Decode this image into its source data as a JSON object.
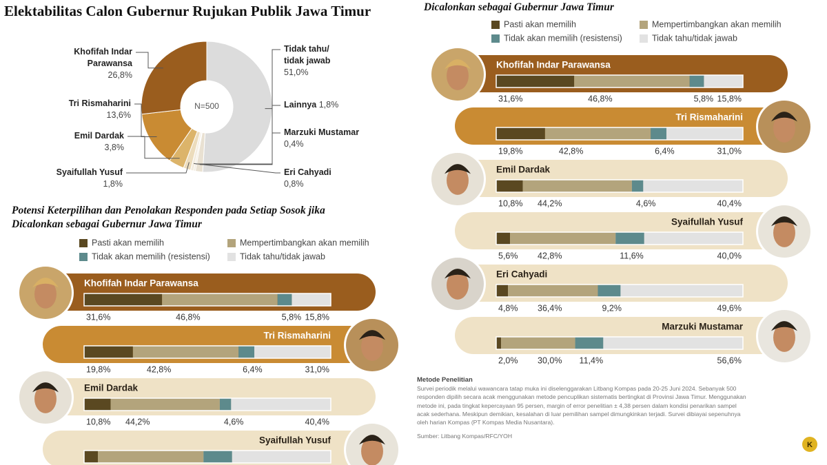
{
  "chart_data": [
    {
      "type": "pie",
      "title": "Elektabilitas Calon Gubernur Rujukan Publik Jawa Timur",
      "annotation": "N=500",
      "categories": [
        "Tidak tahu/ tidak jawab",
        "Lainnya",
        "Marzuki Mustamar",
        "Eri Cahyadi",
        "Syaifullah Yusuf",
        "Emil Dardak",
        "Tri Rismaharini",
        "Khofifah Indar Parawansa"
      ],
      "values": [
        51.0,
        1.8,
        0.4,
        0.8,
        1.8,
        3.8,
        13.6,
        26.8
      ],
      "value_labels": [
        "51,0%",
        "1,8%",
        "0,4%",
        "0,8%",
        "1,8%",
        "3,8%",
        "13,6%",
        "26,8%"
      ],
      "colors": [
        "#dcdcdc",
        "#e9e1d2",
        "#efe7d8",
        "#f3ecdf",
        "#ecdcbc",
        "#dcb46a",
        "#c98b33",
        "#9a5d1e"
      ]
    },
    {
      "type": "stacked_bar",
      "title": "Potensi Keterpilihan dan Penolakan Responden pada Setiap Sosok jika Dicalonkan sebagai Gubernur Jawa Timur",
      "categories": [
        "Khofifah Indar Parawansa",
        "Tri Rismaharini",
        "Emil Dardak",
        "Syaifullah Yusuf",
        "Eri Cahyadi",
        "Marzuki Mustamar"
      ],
      "xlim": [
        0,
        100
      ],
      "series": [
        {
          "name": "Pasti akan memilih",
          "color": "#5a4821",
          "values": [
            31.6,
            19.8,
            10.8,
            5.6,
            4.8,
            2.0
          ],
          "value_labels": [
            "31,6%",
            "19,8%",
            "10,8%",
            "5,6%",
            "4,8%",
            "2,0%"
          ]
        },
        {
          "name": "Mempertimbangkan akan memilih",
          "color": "#b3a47c",
          "values": [
            46.8,
            42.8,
            44.2,
            42.8,
            36.4,
            30.0
          ],
          "value_labels": [
            "46,8%",
            "42,8%",
            "44,2%",
            "42,8%",
            "36,4%",
            "30,0%"
          ]
        },
        {
          "name": "Tidak akan memilih (resistensi)",
          "color": "#5d8a8c",
          "values": [
            5.8,
            6.4,
            4.6,
            11.6,
            9.2,
            11.4
          ],
          "value_labels": [
            "5,8%",
            "6,4%",
            "4,6%",
            "11,6%",
            "9,2%",
            "11,4%"
          ]
        },
        {
          "name": "Tidak tahu/tidak jawab",
          "color": "#e2e2e2",
          "values": [
            15.8,
            31.0,
            40.4,
            40.0,
            49.6,
            56.6
          ],
          "value_labels": [
            "15,8%",
            "31,0%",
            "40,4%",
            "40,0%",
            "49,6%",
            "56,6%"
          ]
        }
      ]
    }
  ],
  "method": {
    "title": "Metode Penelitian",
    "text": "Survei periodik melalui wawancara tatap muka ini diselenggarakan Litbang Kompas pada 20-25 Juni 2024. Sebanyak 500 responden dipilih secara acak menggunakan metode pencuplikan sistematis bertingkat di Provinsi Jawa Timur. Menggunakan metode ini, pada tingkat kepercayaan 95 persen, margin of error penelitian ± 4,38 persen dalam kondisi penarikan sampel acak sederhana. Meskipun demikian, kesalahan di luar pemilihan sampel dimungkinkan terjadi. Survei dibiayai sepenuhnya oleh harian Kompas (PT Kompas Media Nusantara).",
    "source": "Sumber: Litbang Kompas/RFC/YOH"
  }
}
